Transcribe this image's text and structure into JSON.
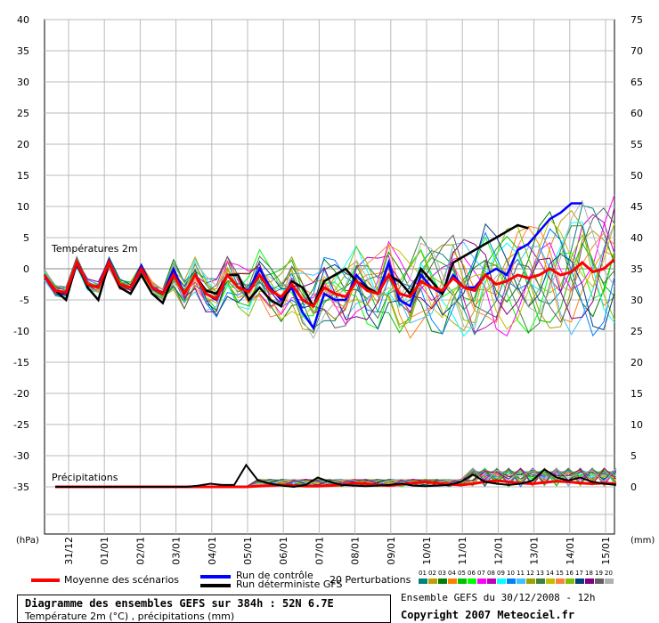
{
  "chart_data": {
    "type": "line",
    "title": "Diagramme des ensembles GEFS sur 384h : 52N 6.7E",
    "subtitle": "Température 2m (°C) , précipitations (mm)",
    "y_left": {
      "label": "(hPa)",
      "ticks": [
        40,
        35,
        30,
        25,
        20,
        15,
        10,
        5,
        0,
        -5,
        -10,
        -15,
        -20,
        -25,
        -30,
        -35
      ],
      "range": [
        -35,
        40
      ]
    },
    "y_right": {
      "label": "(mm)",
      "ticks": [
        75,
        70,
        65,
        60,
        55,
        50,
        45,
        40,
        35,
        30,
        25,
        20,
        15,
        10,
        5,
        0
      ],
      "range": [
        0,
        75
      ]
    },
    "x_ticks": [
      "31/12",
      "01/01",
      "02/01",
      "03/01",
      "04/01",
      "05/01",
      "06/01",
      "07/01",
      "08/01",
      "09/01",
      "10/01",
      "11/01",
      "12/01",
      "13/01",
      "14/01",
      "15/01"
    ],
    "annotations": {
      "temperature_label": "Températures 2m",
      "precip_label": "Précipitations"
    },
    "grid": true,
    "series_temperature": [
      {
        "name": "Moyenne des scénarios",
        "color": "#ff0000",
        "values": [
          -1,
          -3.5,
          -3.8,
          1,
          -2.5,
          -3,
          1,
          -2.5,
          -3,
          0,
          -3,
          -4,
          -1,
          -4,
          -1,
          -4,
          -4.8,
          -1,
          -3,
          -3.7,
          -1,
          -3.5,
          -4.5,
          -2.5,
          -5,
          -6,
          -3,
          -4,
          -4.5,
          -2,
          -3.5,
          -4,
          -1,
          -4,
          -4.5,
          -2,
          -3,
          -3.5,
          -1.5,
          -3,
          -3.5,
          -1,
          -2.5,
          -2,
          -1,
          -1.5,
          -1,
          0,
          -1,
          -0.5,
          1,
          -0.5,
          0,
          1.5
        ]
      },
      {
        "name": "Run de contrôle",
        "color": "#0000ff",
        "values": [
          -1,
          -3.5,
          -4,
          1,
          -2.5,
          -3,
          1,
          -2.5,
          -3,
          0.5,
          -3,
          -4,
          0,
          -4,
          -1,
          -4,
          -5,
          -1,
          -3,
          -3.5,
          0,
          -3,
          -5,
          -3,
          -7,
          -9.5,
          -4,
          -5,
          -5,
          -1,
          -3,
          -4,
          1,
          -5,
          -6,
          -1,
          -3,
          -4,
          -1,
          -3,
          -3,
          -1,
          0,
          -1,
          3,
          4,
          6,
          8,
          9,
          10.5,
          10.5
        ]
      },
      {
        "name": "Run déterministe GFS",
        "color": "#000000",
        "values": [
          -1,
          -3.5,
          -5,
          1,
          -3,
          -5,
          1,
          -3,
          -4,
          -1,
          -4,
          -5.5,
          -1,
          -4,
          -1,
          -3.5,
          -4,
          -1,
          -1,
          -5,
          -3,
          -5,
          -6,
          -2,
          -3,
          -6,
          -2,
          -1,
          0,
          -2,
          -3,
          -4,
          -1,
          -2,
          -4,
          0,
          -2,
          -4,
          1,
          2,
          3,
          4,
          5,
          6,
          7,
          6.5
        ]
      },
      {
        "name": "Perturbations",
        "color": "#808080",
        "values": [
          -1,
          -3,
          -3.5,
          1,
          -2,
          -2.5,
          1,
          -2,
          -2.5,
          0,
          -2.5,
          -3.5,
          -1,
          -3.5,
          0,
          -3,
          -3.5,
          0,
          -2.5,
          -3,
          0,
          -3,
          -4,
          0,
          -4,
          -5,
          -2,
          -3,
          -3,
          0,
          -2,
          -3,
          2,
          -3,
          -4,
          2,
          0,
          -2,
          4,
          3,
          2,
          5,
          4,
          3,
          6,
          5,
          4,
          7,
          6,
          5,
          8
        ]
      }
    ],
    "series_precip": [
      {
        "name": "Moyenne des scénarios",
        "color": "#ff0000",
        "values": [
          0,
          0,
          0,
          0,
          0,
          0,
          0,
          0,
          0,
          0,
          0,
          0,
          0,
          0,
          0,
          0,
          0,
          0.1,
          0.2,
          0.3,
          0.2,
          0.1,
          0.1,
          0.2,
          0.3,
          0.6,
          0.5,
          0.3,
          0.2,
          0.4,
          0.6,
          0.8,
          0.6,
          0.4,
          0.3,
          0.5,
          0.8,
          1,
          0.8,
          0.6,
          0.5,
          0.7,
          0.9,
          0.8,
          0.6,
          0.5,
          0.6,
          0.5
        ]
      },
      {
        "name": "Run déterministe GFS",
        "color": "#000000",
        "values": [
          0,
          0,
          0,
          0,
          0,
          0,
          0,
          0,
          0,
          0,
          0,
          0,
          0.2,
          0.5,
          0.3,
          0.3,
          3.5,
          1,
          0.5,
          0.2,
          0,
          0.3,
          1.5,
          0.8,
          0.3,
          0.2,
          0.1,
          0.2,
          0.3,
          0.5,
          0.2,
          0.1,
          0.2,
          0.3,
          0.8,
          2,
          0.8,
          0.5,
          0.3,
          0.5,
          1,
          2.8,
          1.5,
          1,
          1.5,
          0.8,
          0.5,
          0.3
        ]
      }
    ]
  },
  "legend": {
    "mean": "Moyenne des scénarios",
    "control": "Run de contrôle",
    "deterministic": "Run déterministe GFS",
    "perturbations": "20 Perturbations",
    "numbers": [
      "01",
      "02",
      "03",
      "04",
      "05",
      "06",
      "07",
      "08",
      "09",
      "10",
      "11",
      "12",
      "13",
      "14",
      "15",
      "16",
      "17",
      "18",
      "19",
      "20"
    ],
    "colors": [
      "#008080",
      "#c0a000",
      "#008000",
      "#ff8000",
      "#00c000",
      "#00ff00",
      "#ff00ff",
      "#c000c0",
      "#00ffff",
      "#0080ff",
      "#40c0ff",
      "#a0a000",
      "#408040",
      "#c0c000",
      "#ff8040",
      "#80c000",
      "#004080",
      "#800080",
      "#606060",
      "#b0b0b0"
    ]
  },
  "footer": {
    "title": "Diagramme des ensembles GEFS sur 384h : 52N 6.7E",
    "subtitle": "Température 2m (°C) , précipitations (mm)",
    "run": "Ensemble GEFS du 30/12/2008 - 12h",
    "copyright": "Copyright 2007 Meteociel.fr"
  }
}
